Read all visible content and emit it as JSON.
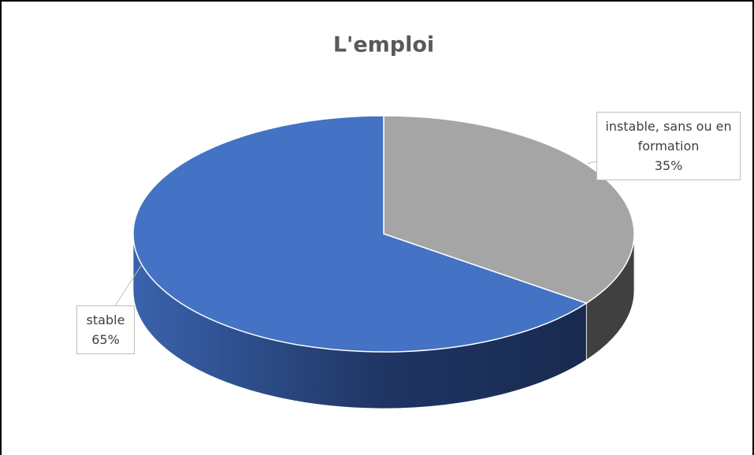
{
  "chart_data": {
    "type": "pie3d",
    "title": "L'emploi",
    "categories": [
      "instable, sans ou en formation",
      "stable"
    ],
    "values": [
      35,
      65
    ],
    "value_labels": [
      "35%",
      "65%"
    ],
    "colors": [
      "#a5a5a5",
      "#4472c4"
    ]
  }
}
